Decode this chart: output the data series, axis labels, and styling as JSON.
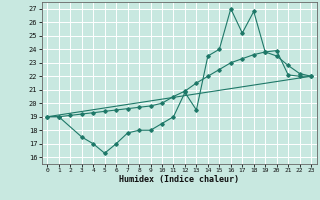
{
  "xlabel": "Humidex (Indice chaleur)",
  "xlim": [
    -0.5,
    23.5
  ],
  "ylim": [
    15.5,
    27.5
  ],
  "yticks": [
    16,
    17,
    18,
    19,
    20,
    21,
    22,
    23,
    24,
    25,
    26,
    27
  ],
  "xticks": [
    0,
    1,
    2,
    3,
    4,
    5,
    6,
    7,
    8,
    9,
    10,
    11,
    12,
    13,
    14,
    15,
    16,
    17,
    18,
    19,
    20,
    21,
    22,
    23
  ],
  "bg_color": "#c8e8e0",
  "line_color": "#1e7868",
  "grid_color": "#ffffff",
  "line1_x": [
    0,
    1,
    3,
    4,
    5,
    6,
    7,
    8,
    9,
    10,
    11,
    12,
    13,
    14,
    15,
    16,
    17,
    18,
    19,
    20,
    21,
    22,
    23
  ],
  "line1_y": [
    19.0,
    19.0,
    17.5,
    17.0,
    16.3,
    17.0,
    17.8,
    18.0,
    18.0,
    18.5,
    19.0,
    20.8,
    19.5,
    23.5,
    24.0,
    27.0,
    25.2,
    26.8,
    23.8,
    23.5,
    22.8,
    22.2,
    22.0
  ],
  "line2_x": [
    0,
    1,
    2,
    3,
    4,
    5,
    6,
    7,
    8,
    9,
    10,
    11,
    12,
    13,
    14,
    15,
    16,
    17,
    18,
    19,
    20,
    21,
    22,
    23
  ],
  "line2_y": [
    19.0,
    19.0,
    19.1,
    19.2,
    19.3,
    19.4,
    19.5,
    19.6,
    19.7,
    19.8,
    20.0,
    20.5,
    20.9,
    21.5,
    22.0,
    22.5,
    23.0,
    23.3,
    23.6,
    23.8,
    23.9,
    22.1,
    22.0,
    22.0
  ],
  "line3_x": [
    0,
    23
  ],
  "line3_y": [
    19.0,
    22.0
  ]
}
